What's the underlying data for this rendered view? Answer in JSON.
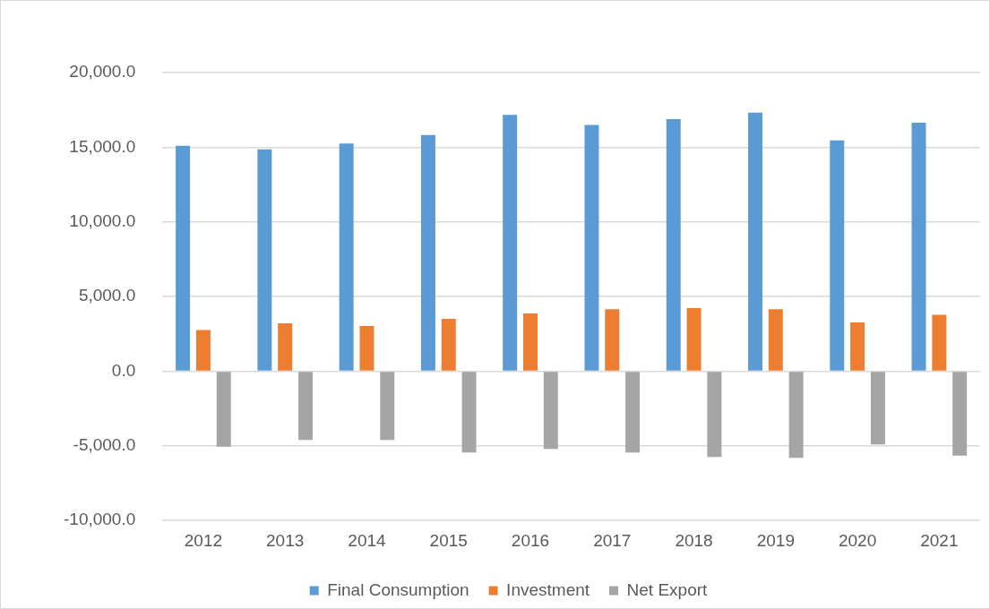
{
  "chart_data": {
    "type": "bar",
    "categories": [
      "2012",
      "2013",
      "2014",
      "2015",
      "2016",
      "2017",
      "2018",
      "2019",
      "2020",
      "2021"
    ],
    "series": [
      {
        "name": "Final Consumption",
        "color": "#5b9bd5",
        "values": [
          15100,
          14850,
          15240,
          15820,
          17160,
          16490,
          16880,
          17320,
          15450,
          16640
        ]
      },
      {
        "name": "Investment",
        "color": "#ed7d31",
        "values": [
          2750,
          3200,
          3030,
          3500,
          3870,
          4150,
          4220,
          4150,
          3270,
          3780
        ]
      },
      {
        "name": "Net Export",
        "color": "#a5a5a5",
        "values": [
          -5050,
          -4610,
          -4610,
          -5450,
          -5210,
          -5450,
          -5750,
          -5800,
          -4910,
          -5650
        ]
      }
    ],
    "ylim": [
      -10000,
      20000
    ],
    "yticks": [
      {
        "value": -10000,
        "label": "-10,000.0"
      },
      {
        "value": -5000,
        "label": "-5,000.0"
      },
      {
        "value": 0,
        "label": "0.0"
      },
      {
        "value": 5000,
        "label": "5,000.0"
      },
      {
        "value": 10000,
        "label": "10,000.0"
      },
      {
        "value": 15000,
        "label": "15,000.0"
      },
      {
        "value": 20000,
        "label": "20,000.0"
      }
    ],
    "grid": "y",
    "legend": "bottom"
  }
}
